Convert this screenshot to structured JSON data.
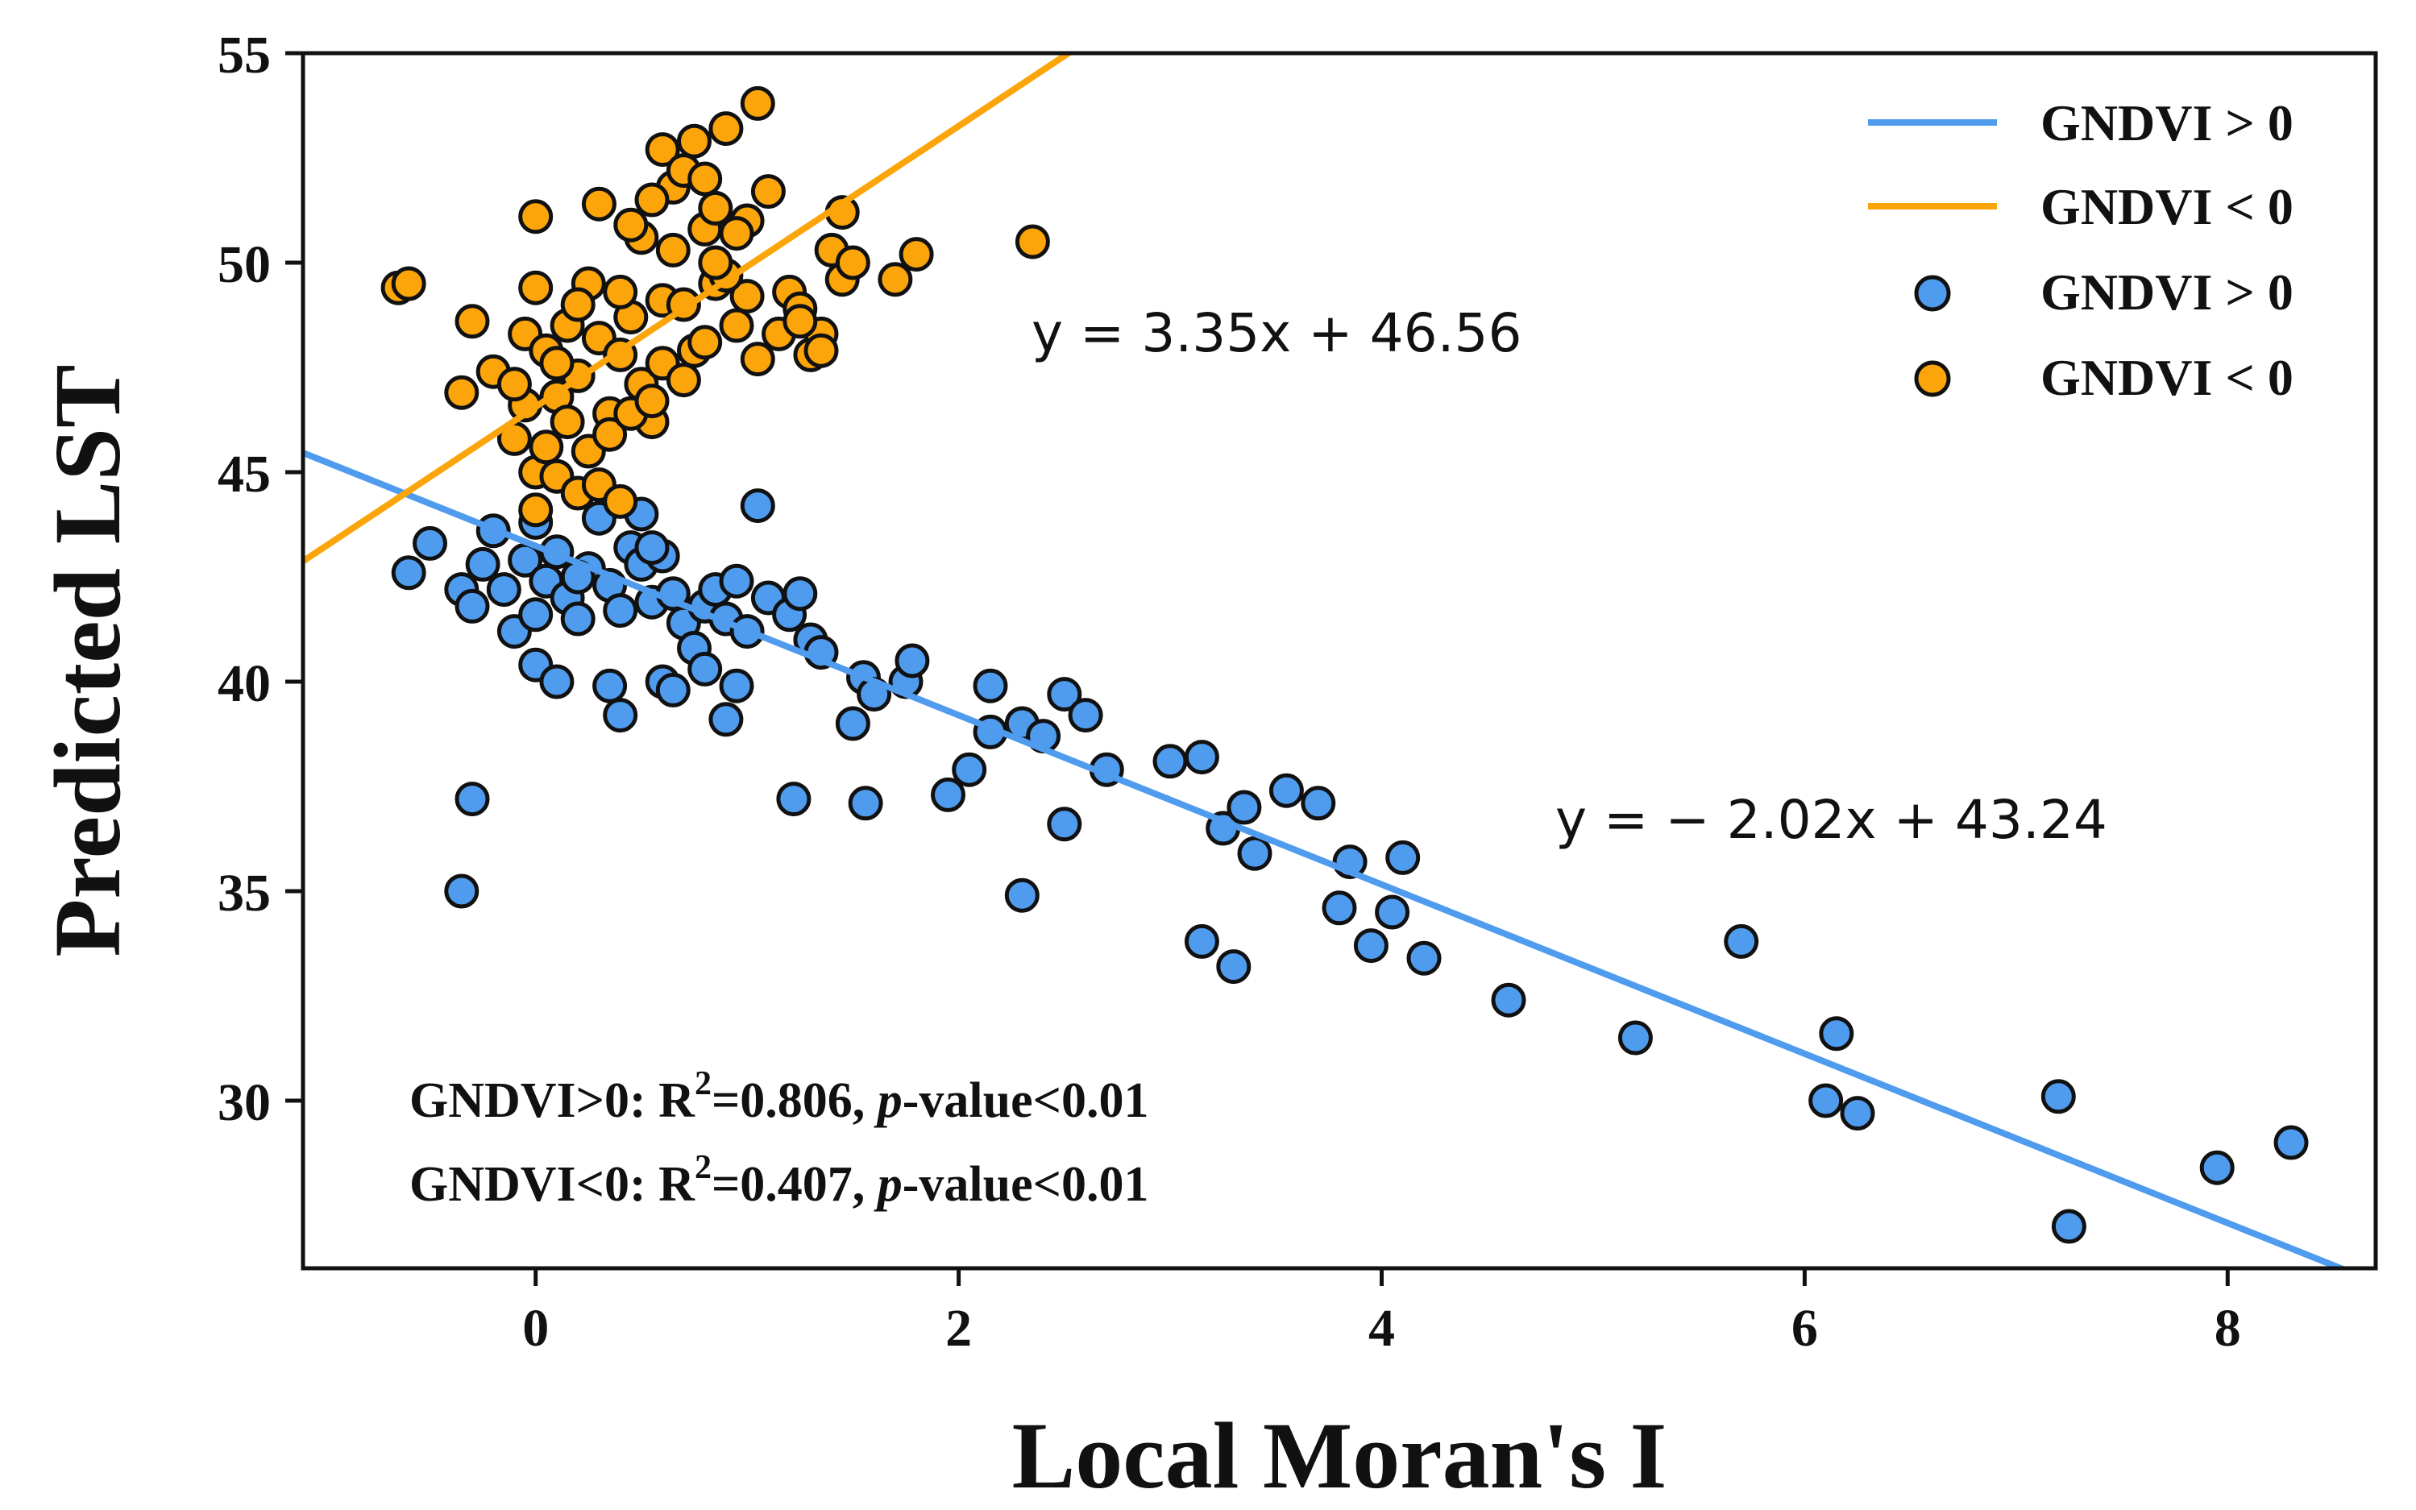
{
  "colors": {
    "pos": "#4f9bee",
    "neg": "#fca50a",
    "edge": "#111111",
    "line_pos": "#4f9bee",
    "line_neg": "#fca50a"
  },
  "chart_data": {
    "type": "scatter",
    "title": "",
    "xlabel": "Local Moran's I",
    "ylabel": "Predicted LST",
    "xlim": [
      -1.1,
      8.7
    ],
    "ylim": [
      26,
      55
    ],
    "xticks": [
      0,
      2,
      4,
      6,
      8
    ],
    "yticks": [
      30,
      35,
      40,
      45,
      50,
      55
    ],
    "xtick_labels": [
      "0",
      "2",
      "4",
      "6",
      "8"
    ],
    "ytick_labels": [
      "30",
      "35",
      "40",
      "45",
      "50",
      "55"
    ],
    "legend": {
      "placement": "top-right",
      "entries": [
        {
          "label": "GNDVI > 0",
          "kind": "line",
          "series": "pos"
        },
        {
          "label": "GNDVI < 0",
          "kind": "line",
          "series": "neg"
        },
        {
          "label": "GNDVI > 0",
          "kind": "marker",
          "series": "pos"
        },
        {
          "label": "GNDVI < 0",
          "kind": "marker",
          "series": "neg"
        }
      ]
    },
    "fits": [
      {
        "name": "GNDVI > 0",
        "series": "pos",
        "slope": -2.02,
        "intercept": 43.24,
        "equation": "y = − 2.02x + 43.24"
      },
      {
        "name": "GNDVI < 0",
        "series": "neg",
        "slope": 3.35,
        "intercept": 46.56,
        "equation": "y = 3.35x + 46.56"
      }
    ],
    "stats": [
      {
        "prefix": "GNDVI>0: R",
        "sup": "2",
        "mid": "=0.806, ",
        "ital": "p",
        "suffix": "-value<0.01"
      },
      {
        "prefix": "GNDVI<0: R",
        "sup": "2",
        "mid": "=0.407, ",
        "ital": "p",
        "suffix": "-value<0.01"
      }
    ],
    "series": [
      {
        "name": "GNDVI > 0",
        "key": "pos",
        "points": [
          [
            -0.6,
            42.6
          ],
          [
            -0.5,
            43.3
          ],
          [
            -0.35,
            42.2
          ],
          [
            -0.3,
            41.8
          ],
          [
            -0.25,
            42.8
          ],
          [
            -0.2,
            43.6
          ],
          [
            -0.15,
            42.2
          ],
          [
            -0.1,
            41.2
          ],
          [
            -0.05,
            42.9
          ],
          [
            0.0,
            43.8
          ],
          [
            0.0,
            41.6
          ],
          [
            0.05,
            42.4
          ],
          [
            0.1,
            43.1
          ],
          [
            0.15,
            42.0
          ],
          [
            0.2,
            41.5
          ],
          [
            0.25,
            42.7
          ],
          [
            0.3,
            43.9
          ],
          [
            0.35,
            42.3
          ],
          [
            0.4,
            41.7
          ],
          [
            0.45,
            43.2
          ],
          [
            0.5,
            42.8
          ],
          [
            0.55,
            41.9
          ],
          [
            0.6,
            43.0
          ],
          [
            0.65,
            42.1
          ],
          [
            0.7,
            41.4
          ],
          [
            0.75,
            40.8
          ],
          [
            0.8,
            41.8
          ],
          [
            0.85,
            42.2
          ],
          [
            0.9,
            41.5
          ],
          [
            0.95,
            42.4
          ],
          [
            1.0,
            41.2
          ],
          [
            0.0,
            40.4
          ],
          [
            0.1,
            40.0
          ],
          [
            0.35,
            39.9
          ],
          [
            0.4,
            39.2
          ],
          [
            0.6,
            40.0
          ],
          [
            0.65,
            39.8
          ],
          [
            0.8,
            40.3
          ],
          [
            0.9,
            39.1
          ],
          [
            0.95,
            39.9
          ],
          [
            1.05,
            44.2
          ],
          [
            1.1,
            42.0
          ],
          [
            1.2,
            41.6
          ],
          [
            1.25,
            42.1
          ],
          [
            1.3,
            41.0
          ],
          [
            1.35,
            40.7
          ],
          [
            1.5,
            39.0
          ],
          [
            1.55,
            40.1
          ],
          [
            1.6,
            39.7
          ],
          [
            1.75,
            40.0
          ],
          [
            1.78,
            40.5
          ],
          [
            1.95,
            37.3
          ],
          [
            2.05,
            37.9
          ],
          [
            2.15,
            38.8
          ],
          [
            2.15,
            39.9
          ],
          [
            2.3,
            39.0
          ],
          [
            2.4,
            38.7
          ],
          [
            2.5,
            39.7
          ],
          [
            2.6,
            39.2
          ],
          [
            2.7,
            37.9
          ],
          [
            2.3,
            34.9
          ],
          [
            2.5,
            36.6
          ],
          [
            1.22,
            37.2
          ],
          [
            1.56,
            37.1
          ],
          [
            -0.3,
            37.2
          ],
          [
            -0.35,
            35.0
          ],
          [
            3.0,
            38.1
          ],
          [
            3.15,
            38.2
          ],
          [
            3.25,
            36.5
          ],
          [
            3.35,
            37.0
          ],
          [
            3.4,
            35.9
          ],
          [
            3.55,
            37.4
          ],
          [
            3.7,
            37.1
          ],
          [
            3.85,
            35.7
          ],
          [
            4.1,
            35.8
          ],
          [
            3.8,
            34.6
          ],
          [
            3.95,
            33.7
          ],
          [
            4.05,
            34.5
          ],
          [
            4.2,
            33.4
          ],
          [
            3.15,
            33.8
          ],
          [
            3.3,
            33.2
          ],
          [
            4.6,
            32.4
          ],
          [
            5.2,
            31.5
          ],
          [
            5.7,
            33.8
          ],
          [
            6.1,
            30.0
          ],
          [
            6.15,
            31.6
          ],
          [
            6.25,
            29.7
          ],
          [
            7.2,
            30.1
          ],
          [
            7.25,
            27.0
          ],
          [
            7.95,
            28.4
          ],
          [
            8.3,
            29.0
          ],
          [
            0.2,
            42.5
          ],
          [
            0.5,
            44.0
          ],
          [
            0.55,
            43.2
          ]
        ]
      },
      {
        "name": "GNDVI < 0",
        "key": "neg",
        "points": [
          [
            -0.65,
            49.4
          ],
          [
            -0.6,
            49.5
          ],
          [
            -0.35,
            46.9
          ],
          [
            -0.3,
            48.6
          ],
          [
            -0.2,
            47.4
          ],
          [
            -0.1,
            45.8
          ],
          [
            -0.05,
            48.3
          ],
          [
            0.0,
            49.4
          ],
          [
            0.0,
            51.1
          ],
          [
            0.05,
            47.9
          ],
          [
            0.1,
            46.8
          ],
          [
            0.15,
            48.5
          ],
          [
            0.2,
            47.3
          ],
          [
            0.25,
            49.5
          ],
          [
            0.3,
            51.4
          ],
          [
            0.3,
            48.2
          ],
          [
            0.35,
            46.4
          ],
          [
            0.4,
            47.8
          ],
          [
            0.45,
            48.7
          ],
          [
            0.5,
            50.6
          ],
          [
            0.5,
            47.1
          ],
          [
            0.55,
            46.2
          ],
          [
            0.6,
            49.1
          ],
          [
            0.6,
            52.7
          ],
          [
            0.65,
            51.8
          ],
          [
            0.65,
            50.3
          ],
          [
            0.7,
            49.0
          ],
          [
            0.75,
            47.9
          ],
          [
            0.75,
            52.9
          ],
          [
            0.8,
            50.8
          ],
          [
            0.85,
            51.3
          ],
          [
            0.85,
            49.5
          ],
          [
            0.9,
            53.2
          ],
          [
            0.95,
            48.5
          ],
          [
            1.0,
            51.0
          ],
          [
            1.0,
            49.2
          ],
          [
            1.05,
            53.8
          ],
          [
            1.05,
            47.7
          ],
          [
            1.1,
            51.7
          ],
          [
            1.2,
            49.3
          ],
          [
            1.25,
            48.9
          ],
          [
            1.3,
            47.8
          ],
          [
            1.35,
            48.3
          ],
          [
            1.4,
            50.3
          ],
          [
            1.45,
            49.6
          ],
          [
            1.45,
            51.2
          ],
          [
            1.5,
            50.0
          ],
          [
            1.7,
            49.6
          ],
          [
            1.8,
            50.2
          ],
          [
            2.35,
            50.5
          ],
          [
            0.0,
            45.0
          ],
          [
            0.05,
            45.6
          ],
          [
            0.1,
            44.9
          ],
          [
            0.2,
            44.5
          ],
          [
            0.3,
            44.7
          ],
          [
            0.4,
            44.3
          ],
          [
            0.0,
            44.1
          ],
          [
            -0.05,
            46.6
          ],
          [
            0.15,
            46.2
          ],
          [
            0.25,
            45.5
          ],
          [
            0.35,
            45.9
          ],
          [
            0.45,
            46.4
          ],
          [
            0.55,
            46.7
          ],
          [
            0.6,
            47.6
          ],
          [
            0.7,
            47.2
          ],
          [
            0.8,
            48.1
          ],
          [
            0.9,
            49.7
          ],
          [
            0.95,
            50.7
          ],
          [
            0.4,
            49.3
          ],
          [
            0.45,
            50.9
          ],
          [
            0.55,
            51.5
          ],
          [
            0.7,
            52.2
          ],
          [
            0.8,
            52.0
          ],
          [
            0.85,
            50.0
          ],
          [
            1.15,
            48.3
          ],
          [
            1.25,
            48.6
          ],
          [
            1.35,
            47.9
          ],
          [
            0.1,
            47.6
          ],
          [
            -0.1,
            47.1
          ],
          [
            0.2,
            49.0
          ]
        ]
      }
    ]
  }
}
